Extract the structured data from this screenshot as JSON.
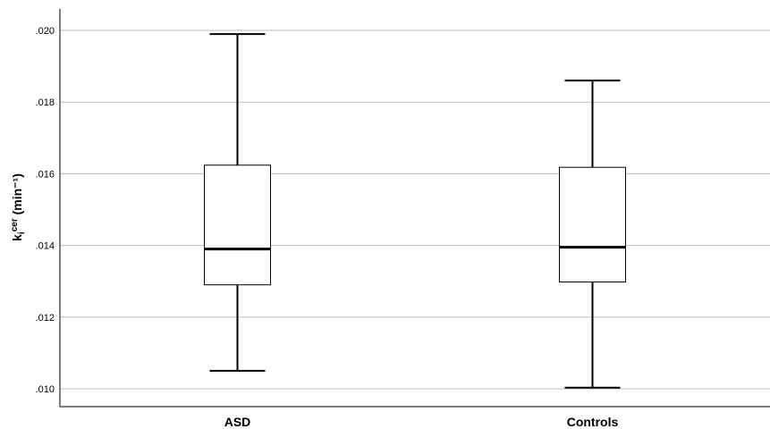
{
  "chart_data": {
    "type": "box",
    "ylabel_main": "k",
    "ylabel_sub": "i",
    "ylabel_sup": "cer",
    "ylabel_unit": " (min⁻¹)",
    "ylim": [
      0.0095,
      0.0206
    ],
    "yticks": [
      {
        "value": 0.01,
        "label": ".010"
      },
      {
        "value": 0.012,
        "label": ".012"
      },
      {
        "value": 0.014,
        "label": ".014"
      },
      {
        "value": 0.016,
        "label": ".016"
      },
      {
        "value": 0.018,
        "label": ".018"
      },
      {
        "value": 0.02,
        "label": ".020"
      }
    ],
    "grid": true,
    "categories": [
      "ASD",
      "Controls"
    ],
    "boxes": [
      {
        "category": "ASD",
        "min": 0.0105,
        "q1": 0.0129,
        "median": 0.0139,
        "q3": 0.01624,
        "max": 0.0199
      },
      {
        "category": "Controls",
        "min": 0.01003,
        "q1": 0.01298,
        "median": 0.01395,
        "q3": 0.01618,
        "max": 0.0186
      }
    ]
  }
}
